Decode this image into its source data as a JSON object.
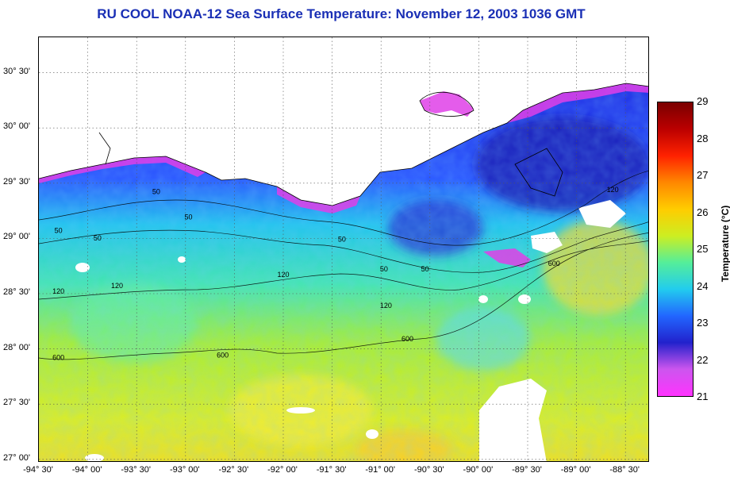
{
  "title": "RU COOL  NOAA-12  Sea Surface Temperature:  November 12, 2003 1036 GMT",
  "map": {
    "lon_range": [
      -94.5,
      -88.25
    ],
    "lat_range": [
      26.97,
      30.82
    ],
    "lat_labels": [
      {
        "lat": 30.5,
        "text": "30° 30'"
      },
      {
        "lat": 30.0,
        "text": "30° 00'"
      },
      {
        "lat": 29.5,
        "text": "29° 30'"
      },
      {
        "lat": 29.0,
        "text": "29° 00'"
      },
      {
        "lat": 28.5,
        "text": "28° 30'"
      },
      {
        "lat": 28.0,
        "text": "28° 00'"
      },
      {
        "lat": 27.5,
        "text": "27° 30'"
      },
      {
        "lat": 27.0,
        "text": "27° 00'"
      }
    ],
    "lon_labels": [
      {
        "lon": -94.5,
        "text": "-94° 30'"
      },
      {
        "lon": -94.0,
        "text": "-94° 00'"
      },
      {
        "lon": -93.5,
        "text": "-93° 30'"
      },
      {
        "lon": -93.0,
        "text": "-93° 00'"
      },
      {
        "lon": -92.5,
        "text": "-92° 30'"
      },
      {
        "lon": -92.0,
        "text": "-92° 00'"
      },
      {
        "lon": -91.5,
        "text": "-91° 30'"
      },
      {
        "lon": -91.0,
        "text": "-91° 00'"
      },
      {
        "lon": -90.5,
        "text": "-90° 30'"
      },
      {
        "lon": -90.0,
        "text": "-90° 00'"
      },
      {
        "lon": -89.5,
        "text": "-89° 30'"
      },
      {
        "lon": -89.0,
        "text": "-89° 00'"
      },
      {
        "lon": -88.5,
        "text": "-88° 30'"
      }
    ],
    "contour_labels": [
      {
        "text": "50",
        "lon": -93.3,
        "lat": 29.4
      },
      {
        "text": "50",
        "lon": -92.97,
        "lat": 29.17
      },
      {
        "text": "50",
        "lon": -94.3,
        "lat": 29.05
      },
      {
        "text": "50",
        "lon": -93.9,
        "lat": 28.98
      },
      {
        "text": "50",
        "lon": -91.4,
        "lat": 28.97
      },
      {
        "text": "50",
        "lon": -90.97,
        "lat": 28.7
      },
      {
        "text": "50",
        "lon": -90.55,
        "lat": 28.7
      },
      {
        "text": "120",
        "lon": -94.3,
        "lat": 28.5
      },
      {
        "text": "120",
        "lon": -93.7,
        "lat": 28.55
      },
      {
        "text": "120",
        "lon": -92.0,
        "lat": 28.65
      },
      {
        "text": "120",
        "lon": -90.95,
        "lat": 28.37
      },
      {
        "text": "120",
        "lon": -88.63,
        "lat": 29.42
      },
      {
        "text": "600",
        "lon": -94.3,
        "lat": 27.9
      },
      {
        "text": "600",
        "lon": -92.62,
        "lat": 27.92
      },
      {
        "text": "600",
        "lon": -90.73,
        "lat": 28.07
      },
      {
        "text": "600",
        "lon": -89.23,
        "lat": 28.75
      }
    ]
  },
  "colorbar": {
    "title": "Temperature (°C)",
    "min": 21,
    "max": 29,
    "ticks": [
      "29",
      "28",
      "27",
      "26",
      "25",
      "24",
      "23",
      "22",
      "21"
    ],
    "colors": [
      "#ff33ff",
      "#cc55ee",
      "#2222cc",
      "#2266ff",
      "#22ccee",
      "#55ee99",
      "#ccee22",
      "#ffcc00",
      "#ff8800",
      "#ff2200",
      "#bb0000",
      "#7a0000"
    ]
  }
}
